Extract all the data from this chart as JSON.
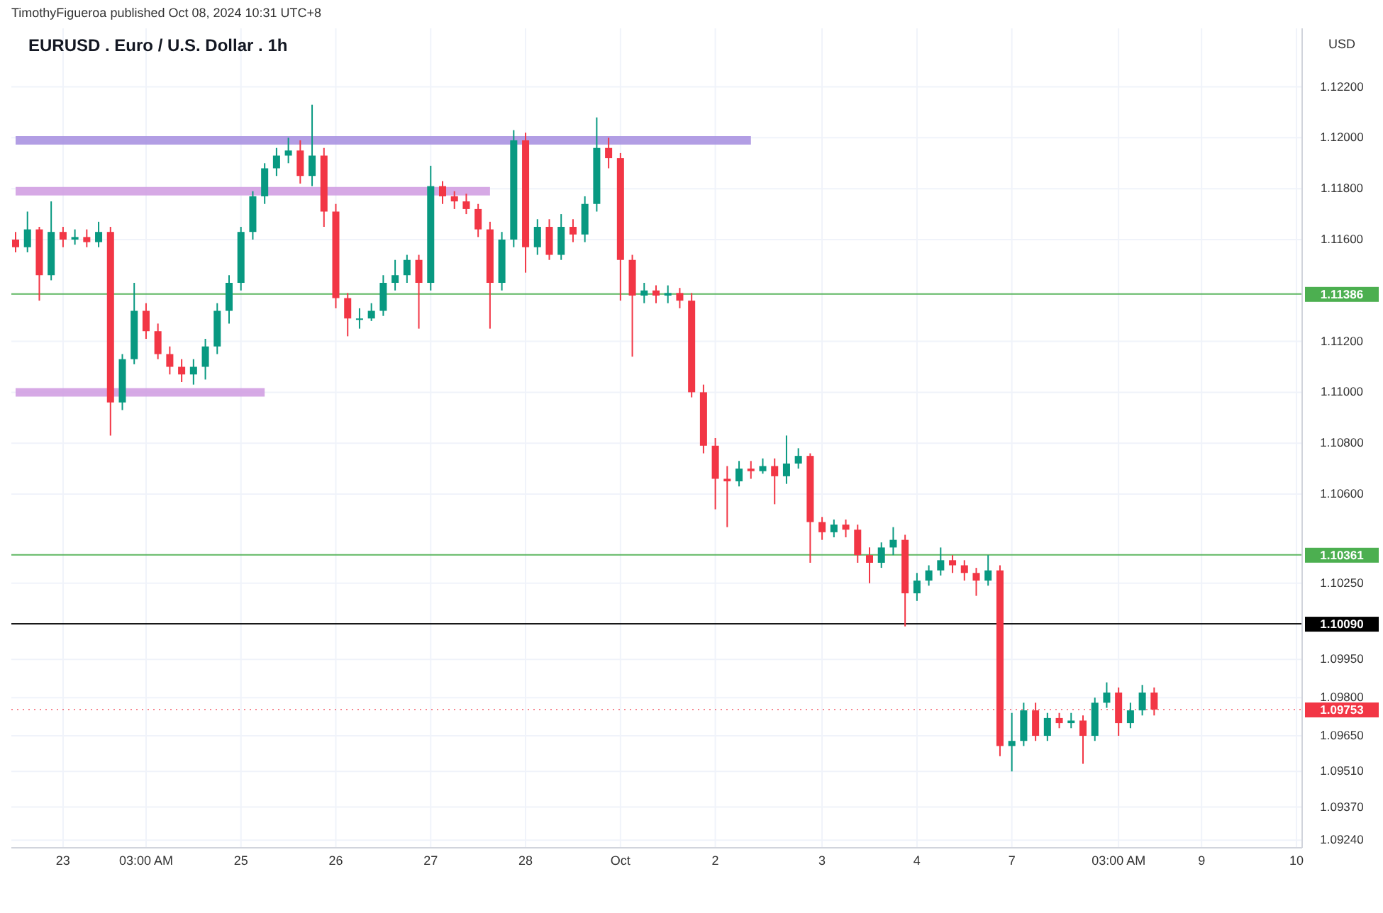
{
  "chart_data": {
    "type": "candlestick",
    "title": "EURUSD . Euro / U.S. Dollar . 1h",
    "ylabel": "USD",
    "annotations": [
      "TimothyFigueroa published Oct 08, 2024 10:31 UTC+8"
    ],
    "categories": [
      null,
      null,
      null,
      null,
      "23",
      null,
      null,
      null,
      null,
      null,
      null,
      "03:00 AM",
      null,
      null,
      null,
      null,
      null,
      null,
      null,
      "25",
      null,
      null,
      null,
      null,
      null,
      null,
      null,
      "26",
      null,
      null,
      null,
      null,
      null,
      null,
      null,
      "27",
      null,
      null,
      null,
      null,
      null,
      null,
      null,
      "28",
      null,
      null,
      null,
      null,
      null,
      null,
      null,
      "Oct",
      null,
      null,
      null,
      null,
      null,
      null,
      null,
      "2",
      null,
      null,
      null,
      null,
      null,
      null,
      null,
      null,
      "3",
      null,
      null,
      null,
      null,
      null,
      null,
      null,
      "4",
      null,
      null,
      null,
      null,
      null,
      null,
      null,
      "7",
      null,
      null,
      null,
      null,
      null,
      null,
      null,
      null,
      "03:00 AM",
      null,
      null,
      null,
      null,
      null,
      null,
      "9",
      null,
      null,
      null,
      null,
      null,
      null,
      null,
      "10"
    ],
    "ohlc": [
      [
        1.116,
        1.1163,
        1.1155,
        1.1157
      ],
      [
        1.1157,
        1.1171,
        1.1155,
        1.1164
      ],
      [
        1.1164,
        1.1165,
        1.1136,
        1.1146
      ],
      [
        1.1146,
        1.1175,
        1.1144,
        1.1163
      ],
      [
        1.1163,
        1.1165,
        1.1157,
        1.116
      ],
      [
        1.116,
        1.1164,
        1.1158,
        1.1161
      ],
      [
        1.1161,
        1.1164,
        1.1157,
        1.1159
      ],
      [
        1.1159,
        1.1167,
        1.1157,
        1.1163
      ],
      [
        1.1163,
        1.1165,
        1.1083,
        1.1096
      ],
      [
        1.1096,
        1.1115,
        1.1093,
        1.1113
      ],
      [
        1.1113,
        1.1143,
        1.1111,
        1.1132
      ],
      [
        1.1132,
        1.1135,
        1.1121,
        1.1124
      ],
      [
        1.1124,
        1.1127,
        1.1113,
        1.1115
      ],
      [
        1.1115,
        1.1118,
        1.1107,
        1.111
      ],
      [
        1.111,
        1.1113,
        1.1104,
        1.1107
      ],
      [
        1.1107,
        1.1113,
        1.1103,
        1.111
      ],
      [
        1.111,
        1.1121,
        1.1105,
        1.1118
      ],
      [
        1.1118,
        1.1135,
        1.1115,
        1.1132
      ],
      [
        1.1132,
        1.1146,
        1.1127,
        1.1143
      ],
      [
        1.1143,
        1.1165,
        1.114,
        1.1163
      ],
      [
        1.1163,
        1.1179,
        1.116,
        1.1177
      ],
      [
        1.1177,
        1.119,
        1.1174,
        1.1188
      ],
      [
        1.1188,
        1.1196,
        1.1185,
        1.1193
      ],
      [
        1.1193,
        1.12,
        1.119,
        1.1195
      ],
      [
        1.1195,
        1.1199,
        1.1182,
        1.1185
      ],
      [
        1.1185,
        1.1213,
        1.1181,
        1.1193
      ],
      [
        1.1193,
        1.1196,
        1.1165,
        1.1171
      ],
      [
        1.1171,
        1.1174,
        1.1133,
        1.1137
      ],
      [
        1.1137,
        1.1139,
        1.1122,
        1.1129
      ],
      [
        1.1129,
        1.1133,
        1.1125,
        1.1129
      ],
      [
        1.1129,
        1.1135,
        1.1128,
        1.1132
      ],
      [
        1.1132,
        1.1146,
        1.113,
        1.1143
      ],
      [
        1.1143,
        1.1152,
        1.114,
        1.1146
      ],
      [
        1.1146,
        1.1154,
        1.1143,
        1.1152
      ],
      [
        1.1152,
        1.1154,
        1.1125,
        1.1143
      ],
      [
        1.1143,
        1.1189,
        1.114,
        1.1181
      ],
      [
        1.1181,
        1.1183,
        1.1174,
        1.1177
      ],
      [
        1.1177,
        1.1179,
        1.1172,
        1.1175
      ],
      [
        1.1175,
        1.1178,
        1.117,
        1.1172
      ],
      [
        1.1172,
        1.1174,
        1.1161,
        1.1164
      ],
      [
        1.1164,
        1.1167,
        1.1125,
        1.1143
      ],
      [
        1.1143,
        1.1163,
        1.114,
        1.116
      ],
      [
        1.116,
        1.1203,
        1.1157,
        1.1199
      ],
      [
        1.1199,
        1.1202,
        1.1147,
        1.1157
      ],
      [
        1.1157,
        1.1168,
        1.1154,
        1.1165
      ],
      [
        1.1165,
        1.1168,
        1.1152,
        1.1154
      ],
      [
        1.1154,
        1.117,
        1.1152,
        1.1165
      ],
      [
        1.1165,
        1.1168,
        1.1159,
        1.1162
      ],
      [
        1.1162,
        1.1177,
        1.1159,
        1.1174
      ],
      [
        1.1174,
        1.1208,
        1.1171,
        1.1196
      ],
      [
        1.1196,
        1.12,
        1.1188,
        1.1192
      ],
      [
        1.1192,
        1.1194,
        1.1136,
        1.1152
      ],
      [
        1.1152,
        1.1154,
        1.1114,
        1.1138
      ],
      [
        1.1138,
        1.1143,
        1.1135,
        1.114
      ],
      [
        1.114,
        1.1142,
        1.1135,
        1.1138
      ],
      [
        1.1138,
        1.1142,
        1.1135,
        1.1139
      ],
      [
        1.1139,
        1.1141,
        1.1133,
        1.1136
      ],
      [
        1.1136,
        1.1139,
        1.1098,
        1.11
      ],
      [
        1.11,
        1.1103,
        1.1076,
        1.1079
      ],
      [
        1.1079,
        1.1082,
        1.1054,
        1.1066
      ],
      [
        1.1066,
        1.1071,
        1.1047,
        1.1065
      ],
      [
        1.1065,
        1.1073,
        1.1063,
        1.107
      ],
      [
        1.107,
        1.1073,
        1.1066,
        1.1069
      ],
      [
        1.1069,
        1.1074,
        1.1068,
        1.1071
      ],
      [
        1.1071,
        1.1074,
        1.1056,
        1.1067
      ],
      [
        1.1067,
        1.1083,
        1.1064,
        1.1072
      ],
      [
        1.1072,
        1.1078,
        1.107,
        1.1075
      ],
      [
        1.1075,
        1.1076,
        1.1033,
        1.1049
      ],
      [
        1.1049,
        1.1051,
        1.1042,
        1.1045
      ],
      [
        1.1045,
        1.105,
        1.1043,
        1.1048
      ],
      [
        1.1048,
        1.105,
        1.1043,
        1.1046
      ],
      [
        1.1046,
        1.1048,
        1.1033,
        1.1036
      ],
      [
        1.1036,
        1.1039,
        1.1025,
        1.1033
      ],
      [
        1.1033,
        1.1041,
        1.1031,
        1.1039
      ],
      [
        1.1039,
        1.1047,
        1.1036,
        1.1042
      ],
      [
        1.1042,
        1.1044,
        1.1008,
        1.1021
      ],
      [
        1.1021,
        1.1029,
        1.1018,
        1.1026
      ],
      [
        1.1026,
        1.1032,
        1.1024,
        1.103
      ],
      [
        1.103,
        1.1039,
        1.1028,
        1.1034
      ],
      [
        1.1034,
        1.1036,
        1.1029,
        1.1032
      ],
      [
        1.1032,
        1.1034,
        1.1026,
        1.1029
      ],
      [
        1.1029,
        1.1031,
        1.102,
        1.1026
      ],
      [
        1.1026,
        1.1036,
        1.1024,
        1.103
      ],
      [
        1.103,
        1.1032,
        1.0957,
        1.0961
      ],
      [
        1.0961,
        1.0974,
        1.0951,
        1.0963
      ],
      [
        1.0963,
        1.0978,
        1.0961,
        1.0975
      ],
      [
        1.0975,
        1.0978,
        1.0963,
        1.0965
      ],
      [
        1.0965,
        1.0974,
        1.0963,
        1.0972
      ],
      [
        1.0972,
        1.0974,
        1.0968,
        1.097
      ],
      [
        1.097,
        1.0974,
        1.0968,
        1.0971
      ],
      [
        1.0971,
        1.0973,
        1.0954,
        1.0965
      ],
      [
        1.0965,
        1.098,
        1.0963,
        1.0978
      ],
      [
        1.0978,
        1.0986,
        1.0976,
        1.0982
      ],
      [
        1.0982,
        1.0984,
        1.0965,
        1.097
      ],
      [
        1.097,
        1.0978,
        1.0968,
        1.0975
      ],
      [
        1.0975,
        1.0985,
        1.0973,
        1.0982
      ],
      [
        1.0982,
        1.0984,
        1.0973,
        1.09753
      ],
      null,
      null,
      null,
      null,
      null,
      null,
      null,
      null,
      null,
      null,
      null,
      null
    ],
    "series": [
      {
        "type": "line",
        "color": "#a58ddf",
        "values": [
          1.1199,
          1.1199,
          1.1199,
          1.1199,
          1.1199,
          1.1199,
          1.1199,
          1.1199,
          1.1199,
          1.1199,
          1.1199,
          1.1199,
          1.1199,
          1.1199,
          1.1199,
          1.1199,
          1.1199,
          1.1199,
          1.1199,
          1.1199,
          1.1199,
          1.1199,
          1.1199,
          1.1199,
          1.1199,
          1.1199,
          1.1199,
          1.1199,
          1.1199,
          1.1199,
          1.1199,
          1.1199,
          1.1199,
          1.1199,
          1.1199,
          1.1199,
          1.1199,
          1.1199,
          1.1199,
          1.1199,
          1.1199,
          1.1199,
          1.1199,
          1.1199,
          1.1199,
          1.1199,
          1.1199,
          1.1199,
          1.1199,
          1.1199,
          1.1199,
          1.1199,
          1.1199,
          1.1199,
          1.1199,
          1.1199,
          1.1199,
          1.1199,
          1.1199,
          1.1199,
          1.1199,
          1.1199,
          1.1199,
          null,
          null,
          null,
          null,
          null,
          null,
          null,
          null,
          null,
          null,
          null,
          null,
          null,
          null,
          null,
          null,
          null,
          null,
          null,
          null,
          null,
          null,
          null,
          null,
          null,
          null,
          null,
          null,
          null,
          null,
          null,
          null,
          null,
          null,
          null,
          null,
          null,
          null,
          null,
          null,
          null,
          null,
          null,
          null,
          null,
          null
        ]
      },
      {
        "type": "line",
        "color": "#cf9ae0",
        "values": [
          1.1179,
          1.1179,
          1.1179,
          1.1179,
          1.1179,
          1.1179,
          1.1179,
          1.1179,
          1.1179,
          1.1179,
          1.1179,
          1.1179,
          1.1179,
          1.1179,
          1.1179,
          1.1179,
          1.1179,
          1.1179,
          1.1179,
          1.1179,
          1.1179,
          1.1179,
          1.1179,
          1.1179,
          1.1179,
          1.1179,
          1.1179,
          1.1179,
          1.1179,
          1.1179,
          1.1179,
          1.1179,
          1.1179,
          1.1179,
          1.1179,
          1.1179,
          1.1179,
          1.1179,
          1.1179,
          1.1179,
          1.1179,
          null,
          null,
          null,
          null,
          null,
          null,
          null,
          null,
          null,
          null,
          null,
          null,
          null,
          null,
          null,
          null,
          null,
          null,
          null,
          null,
          null,
          null,
          null,
          null,
          null,
          null,
          null,
          null,
          null,
          null,
          null,
          null,
          null,
          null,
          null,
          null,
          null,
          null,
          null,
          null,
          null,
          null,
          null,
          null,
          null,
          null,
          null,
          null,
          null,
          null,
          null,
          null,
          null,
          null,
          null,
          null,
          null,
          null,
          null,
          null,
          null,
          null,
          null,
          null,
          null,
          null,
          null,
          null
        ]
      },
      {
        "type": "line",
        "color": "#cf9ae0",
        "values": [
          1.11,
          1.11,
          1.11,
          1.11,
          1.11,
          1.11,
          1.11,
          1.11,
          1.11,
          1.11,
          1.11,
          1.11,
          1.11,
          1.11,
          1.11,
          1.11,
          1.11,
          1.11,
          1.11,
          1.11,
          1.11,
          1.11,
          null,
          null,
          null,
          null,
          null,
          null,
          null,
          null,
          null,
          null,
          null,
          null,
          null,
          null,
          null,
          null,
          null,
          null,
          null,
          null,
          null,
          null,
          null,
          null,
          null,
          null,
          null,
          null,
          null,
          null,
          null,
          null,
          null,
          null,
          null,
          null,
          null,
          null,
          null,
          null,
          null,
          null,
          null,
          null,
          null,
          null,
          null,
          null,
          null,
          null,
          null,
          null,
          null,
          null,
          null,
          null,
          null,
          null,
          null,
          null,
          null,
          null,
          null,
          null,
          null,
          null,
          null,
          null,
          null,
          null,
          null,
          null,
          null,
          null,
          null,
          null,
          null,
          null,
          null,
          null,
          null,
          null,
          null,
          null,
          null,
          null,
          null
        ]
      }
    ],
    "ref_lines": [
      {
        "axis": "y",
        "value": 1.11386,
        "label": "1.11386",
        "color": "#4caf50"
      },
      {
        "axis": "y",
        "value": 1.10361,
        "label": "1.10361",
        "color": "#4caf50"
      },
      {
        "axis": "y",
        "value": 1.1009,
        "label": "1.10090",
        "color": "#000000"
      },
      {
        "axis": "y",
        "value": 1.09753,
        "label": "1.09753",
        "color": "#f23645",
        "line_style": "dotted"
      }
    ],
    "ylim": [
      1.0921,
      1.1243
    ],
    "yticks": [
      {
        "value": 1.122,
        "label": "1.12200"
      },
      {
        "value": 1.12,
        "label": "1.12000"
      },
      {
        "value": 1.118,
        "label": "1.11800"
      },
      {
        "value": 1.116,
        "label": "1.11600"
      },
      {
        "value": 1.112,
        "label": "1.11200"
      },
      {
        "value": 1.11,
        "label": "1.11000"
      },
      {
        "value": 1.108,
        "label": "1.10800"
      },
      {
        "value": 1.106,
        "label": "1.10600"
      },
      {
        "value": 1.1025,
        "label": "1.10250"
      },
      {
        "value": 1.0995,
        "label": "1.09950"
      },
      {
        "value": 1.098,
        "label": "1.09800"
      },
      {
        "value": 1.0965,
        "label": "1.09650"
      },
      {
        "value": 1.0951,
        "label": "1.09510"
      },
      {
        "value": 1.0937,
        "label": "1.09370"
      },
      {
        "value": 1.0924,
        "label": "1.09240"
      }
    ],
    "grid": true
  }
}
